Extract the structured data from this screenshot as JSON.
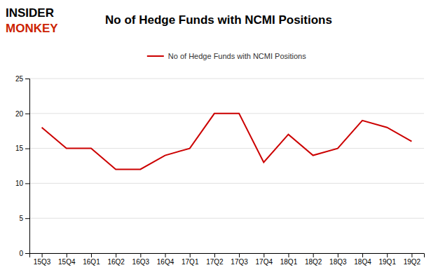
{
  "chart_data": {
    "type": "line",
    "title": "No of Hedge Funds with NCMI Positions",
    "annotations": [
      {
        "text": "INSIDER",
        "color": "#000000"
      },
      {
        "text": "MONKEY",
        "color": "#cc2200"
      }
    ],
    "categories": [
      "15Q3",
      "15Q4",
      "16Q1",
      "16Q2",
      "16Q3",
      "16Q4",
      "17Q1",
      "17Q2",
      "17Q3",
      "17Q4",
      "18Q1",
      "18Q2",
      "18Q3",
      "18Q4",
      "19Q1",
      "19Q2"
    ],
    "series": [
      {
        "name": "No of Hedge Funds with NCMI Positions",
        "color": "#cc0000",
        "values": [
          18,
          15,
          15,
          12,
          12,
          14,
          15,
          20,
          20,
          13,
          17,
          14,
          15,
          19,
          18,
          16
        ]
      }
    ],
    "ylim": [
      0,
      25
    ],
    "yticks": [
      0,
      5,
      10,
      15,
      20,
      25
    ],
    "grid": true,
    "legend": "top"
  }
}
